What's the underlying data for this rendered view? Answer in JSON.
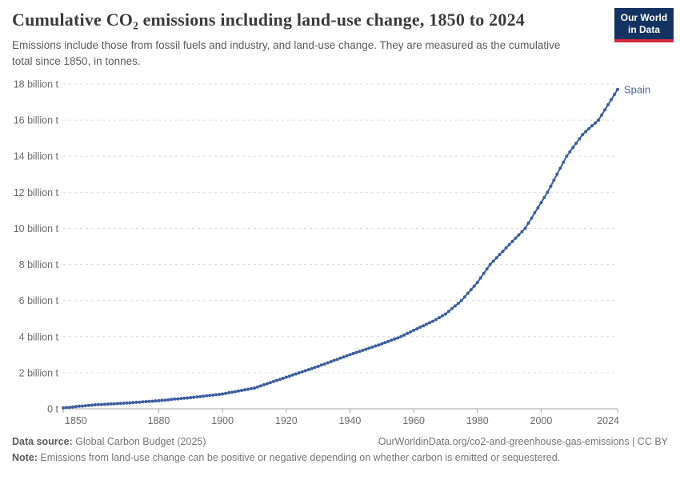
{
  "header": {
    "title": "Cumulative CO₂ emissions including land-use change, 1850 to 2024",
    "subtitle": "Emissions include those from fossil fuels and industry, and land-use change. They are measured as the cumulative total since 1850, in tonnes."
  },
  "logo": {
    "line1": "Our World",
    "line2": "in Data"
  },
  "colors": {
    "line": "#3d5e9c",
    "series_label": "#4d659c",
    "grid": "#dcdcdc",
    "axis": "#a6a6a6",
    "tick_label": "#6b6b6b",
    "logo_navy": "#153360",
    "logo_red": "#d42a3e"
  },
  "chart_data": {
    "type": "line",
    "title": "Cumulative CO₂ emissions including land-use change, 1850 to 2024",
    "xlabel": "",
    "ylabel": "",
    "xlim": [
      1850,
      2024
    ],
    "ylim": [
      0,
      18
    ],
    "x_ticks": [
      1850,
      1880,
      1900,
      1920,
      1940,
      1960,
      1980,
      2000,
      2024
    ],
    "y_ticks": [
      0,
      2,
      4,
      6,
      8,
      10,
      12,
      14,
      16,
      18
    ],
    "y_tick_format": {
      "zero": "0 t",
      "suffix": " billion t"
    },
    "grid": true,
    "legend_position": "end-of-line",
    "unit": "billion tonnes",
    "series": [
      {
        "name": "Spain",
        "start_year": 1850,
        "end_year": 2024,
        "values": [
          0.05,
          0.07,
          0.08,
          0.1,
          0.12,
          0.14,
          0.15,
          0.17,
          0.19,
          0.2,
          0.22,
          0.23,
          0.24,
          0.25,
          0.26,
          0.27,
          0.28,
          0.29,
          0.3,
          0.31,
          0.32,
          0.33,
          0.35,
          0.36,
          0.37,
          0.39,
          0.4,
          0.41,
          0.42,
          0.44,
          0.45,
          0.47,
          0.48,
          0.5,
          0.52,
          0.54,
          0.55,
          0.57,
          0.59,
          0.6,
          0.62,
          0.64,
          0.66,
          0.68,
          0.7,
          0.72,
          0.74,
          0.76,
          0.78,
          0.8,
          0.82,
          0.85,
          0.89,
          0.92,
          0.95,
          0.99,
          1.02,
          1.05,
          1.08,
          1.12,
          1.15,
          1.21,
          1.27,
          1.33,
          1.39,
          1.45,
          1.51,
          1.57,
          1.63,
          1.69,
          1.75,
          1.81,
          1.87,
          1.93,
          1.99,
          2.05,
          2.11,
          2.17,
          2.23,
          2.29,
          2.35,
          2.42,
          2.48,
          2.55,
          2.61,
          2.68,
          2.74,
          2.81,
          2.87,
          2.94,
          3.0,
          3.06,
          3.12,
          3.18,
          3.24,
          3.3,
          3.36,
          3.42,
          3.48,
          3.54,
          3.6,
          3.67,
          3.73,
          3.8,
          3.87,
          3.93,
          4.0,
          4.09,
          4.18,
          4.26,
          4.35,
          4.43,
          4.52,
          4.6,
          4.68,
          4.77,
          4.85,
          4.95,
          5.05,
          5.15,
          5.25,
          5.4,
          5.55,
          5.7,
          5.85,
          6.0,
          6.2,
          6.4,
          6.6,
          6.8,
          7.0,
          7.25,
          7.5,
          7.75,
          8.0,
          8.18,
          8.37,
          8.55,
          8.73,
          8.92,
          9.1,
          9.28,
          9.46,
          9.64,
          9.82,
          10.0,
          10.29,
          10.57,
          10.86,
          11.14,
          11.43,
          11.71,
          12.0,
          12.33,
          12.67,
          13.0,
          13.33,
          13.67,
          14.0,
          14.24,
          14.48,
          14.72,
          14.96,
          15.2,
          15.36,
          15.52,
          15.68,
          15.84,
          16.0,
          16.28,
          16.57,
          16.85,
          17.13,
          17.42,
          17.7
        ]
      }
    ]
  },
  "footer": {
    "source_label": "Data source:",
    "source_text": " Global Carbon Budget (2025)",
    "link_text": "OurWorldinData.org/co2-and-greenhouse-gas-emissions | CC BY",
    "note_label": "Note:",
    "note_text": " Emissions from land-use change can be positive or negative depending on whether carbon is emitted or sequestered."
  }
}
